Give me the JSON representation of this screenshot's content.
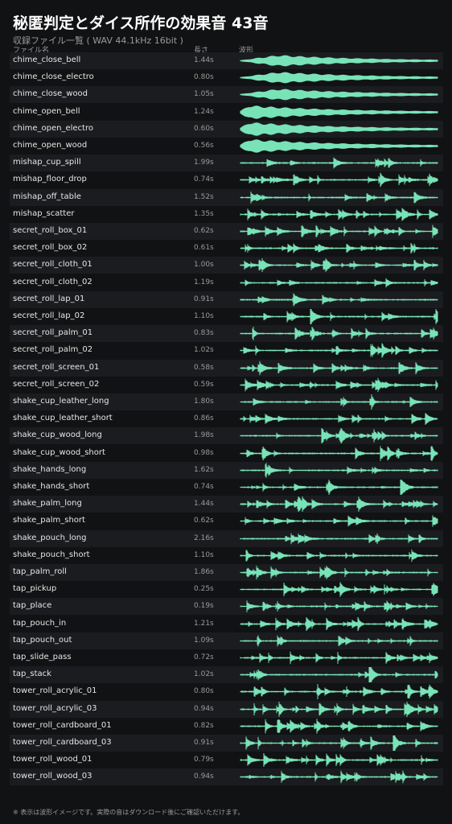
{
  "header": {
    "title": "秘匿判定とダイス所作の効果音 43音",
    "subtitle": "収録ファイル一覧 ( WAV 44.1kHz 16bit )"
  },
  "table": {
    "columns": [
      "ファイル名",
      "長さ",
      "波形"
    ],
    "rows": [
      [
        "chime_close_bell",
        "1.44s"
      ],
      [
        "chime_close_electro",
        "0.80s"
      ],
      [
        "chime_close_wood",
        "1.05s"
      ],
      [
        "chime_open_bell",
        "1.24s"
      ],
      [
        "chime_open_electro",
        "0.60s"
      ],
      [
        "chime_open_wood",
        "0.56s"
      ],
      [
        "mishap_cup_spill",
        "1.99s"
      ],
      [
        "mishap_floor_drop",
        "0.74s"
      ],
      [
        "mishap_off_table",
        "1.52s"
      ],
      [
        "mishap_scatter",
        "1.35s"
      ],
      [
        "secret_roll_box_01",
        "0.62s"
      ],
      [
        "secret_roll_box_02",
        "0.61s"
      ],
      [
        "secret_roll_cloth_01",
        "1.00s"
      ],
      [
        "secret_roll_cloth_02",
        "1.19s"
      ],
      [
        "secret_roll_lap_01",
        "0.91s"
      ],
      [
        "secret_roll_lap_02",
        "1.10s"
      ],
      [
        "secret_roll_palm_01",
        "0.83s"
      ],
      [
        "secret_roll_palm_02",
        "1.02s"
      ],
      [
        "secret_roll_screen_01",
        "0.58s"
      ],
      [
        "secret_roll_screen_02",
        "0.59s"
      ],
      [
        "shake_cup_leather_long",
        "1.80s"
      ],
      [
        "shake_cup_leather_short",
        "0.86s"
      ],
      [
        "shake_cup_wood_long",
        "1.98s"
      ],
      [
        "shake_cup_wood_short",
        "0.98s"
      ],
      [
        "shake_hands_long",
        "1.62s"
      ],
      [
        "shake_hands_short",
        "0.74s"
      ],
      [
        "shake_palm_long",
        "1.44s"
      ],
      [
        "shake_palm_short",
        "0.62s"
      ],
      [
        "shake_pouch_long",
        "2.16s"
      ],
      [
        "shake_pouch_short",
        "1.10s"
      ],
      [
        "tap_palm_roll",
        "1.86s"
      ],
      [
        "tap_pickup",
        "0.25s"
      ],
      [
        "tap_place",
        "0.19s"
      ],
      [
        "tap_pouch_in",
        "1.21s"
      ],
      [
        "tap_pouch_out",
        "1.09s"
      ],
      [
        "tap_slide_pass",
        "0.72s"
      ],
      [
        "tap_stack",
        "1.02s"
      ],
      [
        "tower_roll_acrylic_01",
        "0.80s"
      ],
      [
        "tower_roll_acrylic_03",
        "0.94s"
      ],
      [
        "tower_roll_cardboard_01",
        "0.82s"
      ],
      [
        "tower_roll_cardboard_03",
        "0.91s"
      ],
      [
        "tower_roll_wood_01",
        "0.79s"
      ],
      [
        "tower_roll_wood_03",
        "0.94s"
      ]
    ]
  },
  "footer": {
    "note": "※ 表示は波形イメージです。実際の音はダウンロード後にご確認いただけます。"
  }
}
